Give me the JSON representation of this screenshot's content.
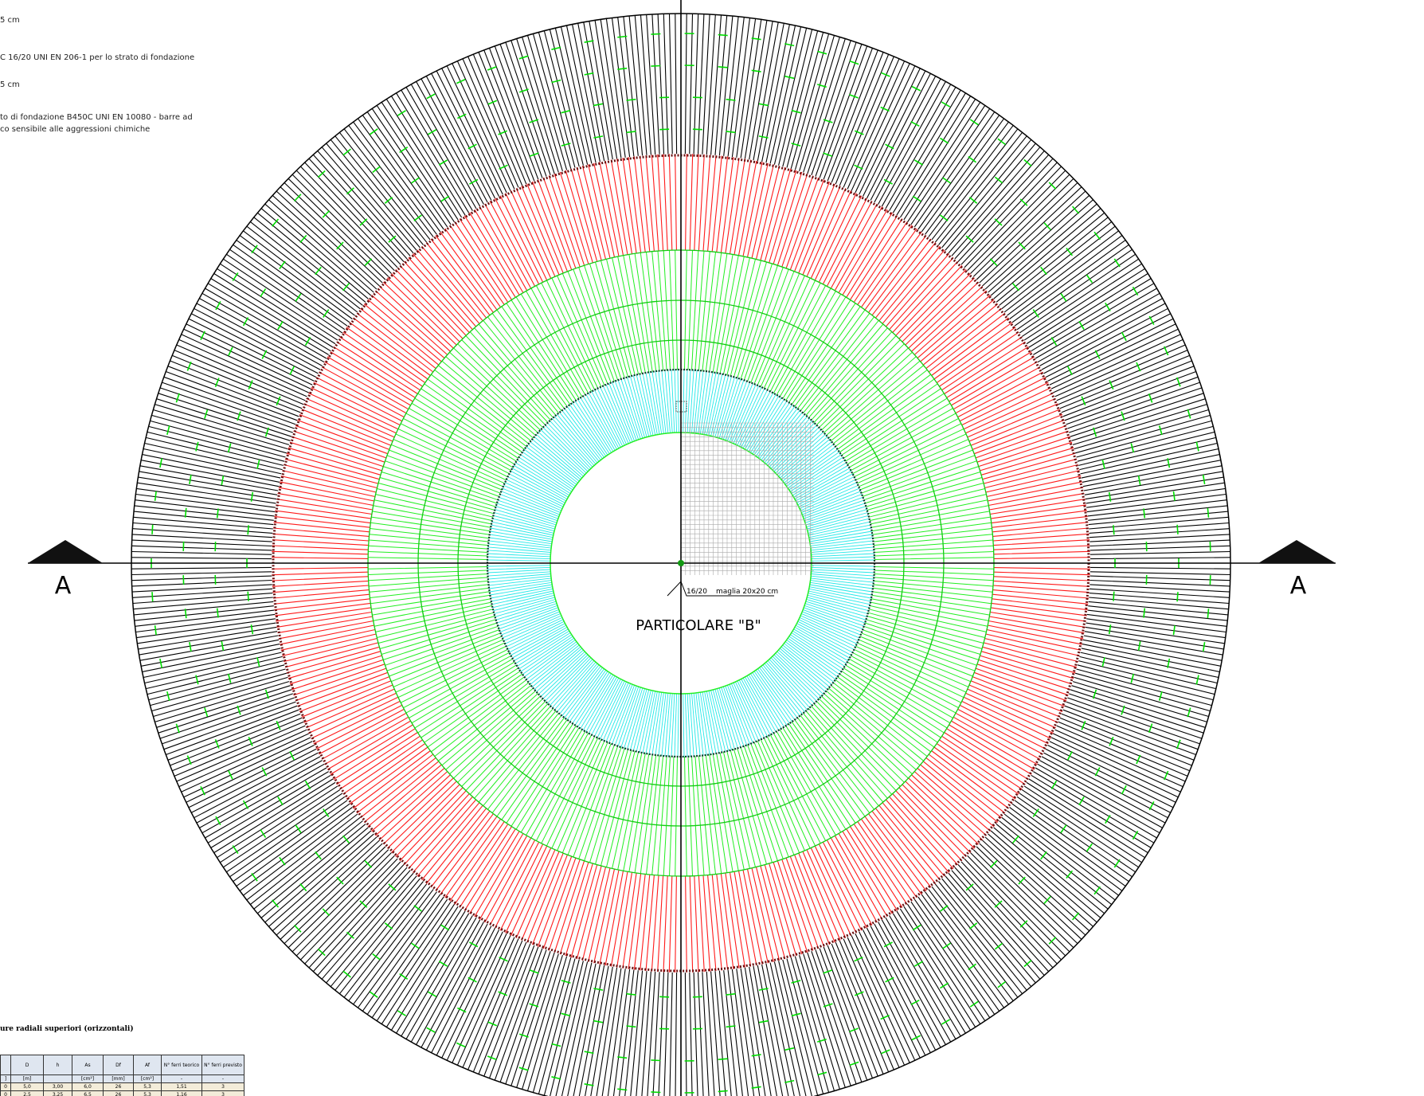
{
  "notes": [
    "5 cm",
    "C 16/20 UNI EN 206-1 per lo strato di fondazione",
    "5 cm",
    "to di fondazione B450C UNI EN 10080 - barre ad",
    "co sensibile alle aggressioni chimiche"
  ],
  "section_labels": [
    "A",
    "A"
  ],
  "detail": {
    "concrete": "16/20",
    "mesh": "maglia 20x20 cm",
    "label": "PARTICOLARE \"B\""
  },
  "table": {
    "title": "ure radiali superiori (orizzontali)",
    "headers": [
      null,
      "D",
      "h",
      "As",
      "Df",
      "Af",
      "N° ferri teorico",
      "N° ferri previsto"
    ],
    "units": [
      "]",
      "[m]",
      null,
      "[cm²]",
      "[mm]",
      "[cm²]",
      "-",
      "-"
    ],
    "rows": [
      [
        "0",
        "5,0",
        "3,00",
        "6,0",
        "26",
        "5,3",
        "1,51",
        "3"
      ],
      [
        "0",
        "2,5",
        "3,25",
        "6,5",
        "26",
        "5,3",
        "1,16",
        "3"
      ]
    ]
  }
}
